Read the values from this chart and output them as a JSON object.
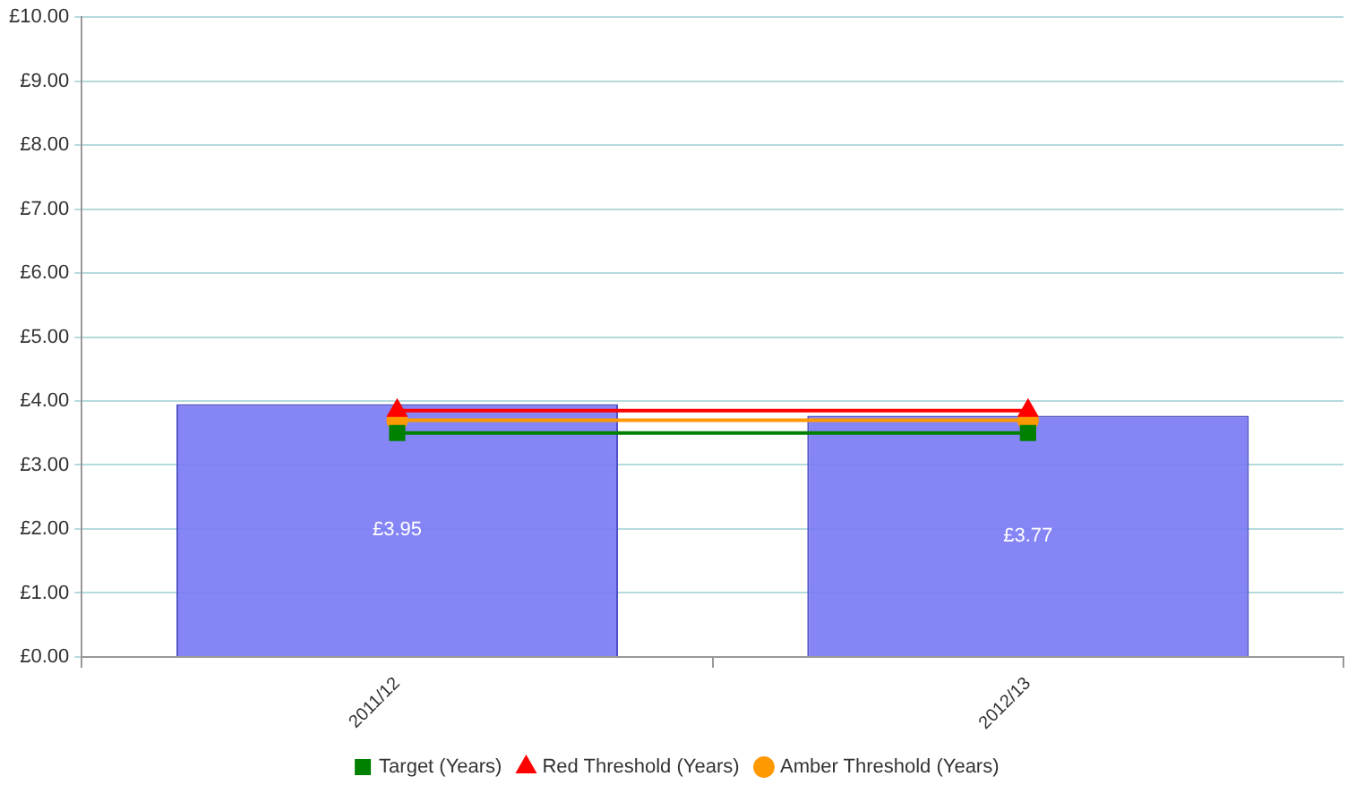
{
  "chart_data": {
    "type": "bar",
    "categories": [
      "2011/12",
      "2012/13"
    ],
    "series": [
      {
        "color": "#7b7bf5",
        "values": [
          3.95,
          3.77
        ],
        "value_labels": [
          "£3.95",
          "£3.77"
        ]
      },
      {
        "type": "line",
        "name": "Target (Years)",
        "color": "#008000",
        "marker": "square",
        "values": [
          3.5,
          3.5
        ]
      },
      {
        "type": "line",
        "name": "Red Threshold (Years)",
        "color": "#ff0000",
        "marker": "triangle",
        "values": [
          3.85,
          3.85
        ]
      },
      {
        "type": "line",
        "name": "Amber Threshold (Years)",
        "color": "#ff9900",
        "marker": "circle",
        "values": [
          3.7,
          3.7
        ]
      }
    ],
    "ylim": [
      0,
      10
    ],
    "yticks": [
      {
        "value": 0,
        "label": "£0.00"
      },
      {
        "value": 1,
        "label": "£1.00"
      },
      {
        "value": 2,
        "label": "£2.00"
      },
      {
        "value": 3,
        "label": "£3.00"
      },
      {
        "value": 4,
        "label": "£4.00"
      },
      {
        "value": 5,
        "label": "£5.00"
      },
      {
        "value": 6,
        "label": "£6.00"
      },
      {
        "value": 7,
        "label": "£7.00"
      },
      {
        "value": 8,
        "label": "£8.00"
      },
      {
        "value": 9,
        "label": "£9.00"
      },
      {
        "value": 10,
        "label": "£10.00"
      }
    ],
    "grid": "y",
    "legend": "bottom"
  }
}
